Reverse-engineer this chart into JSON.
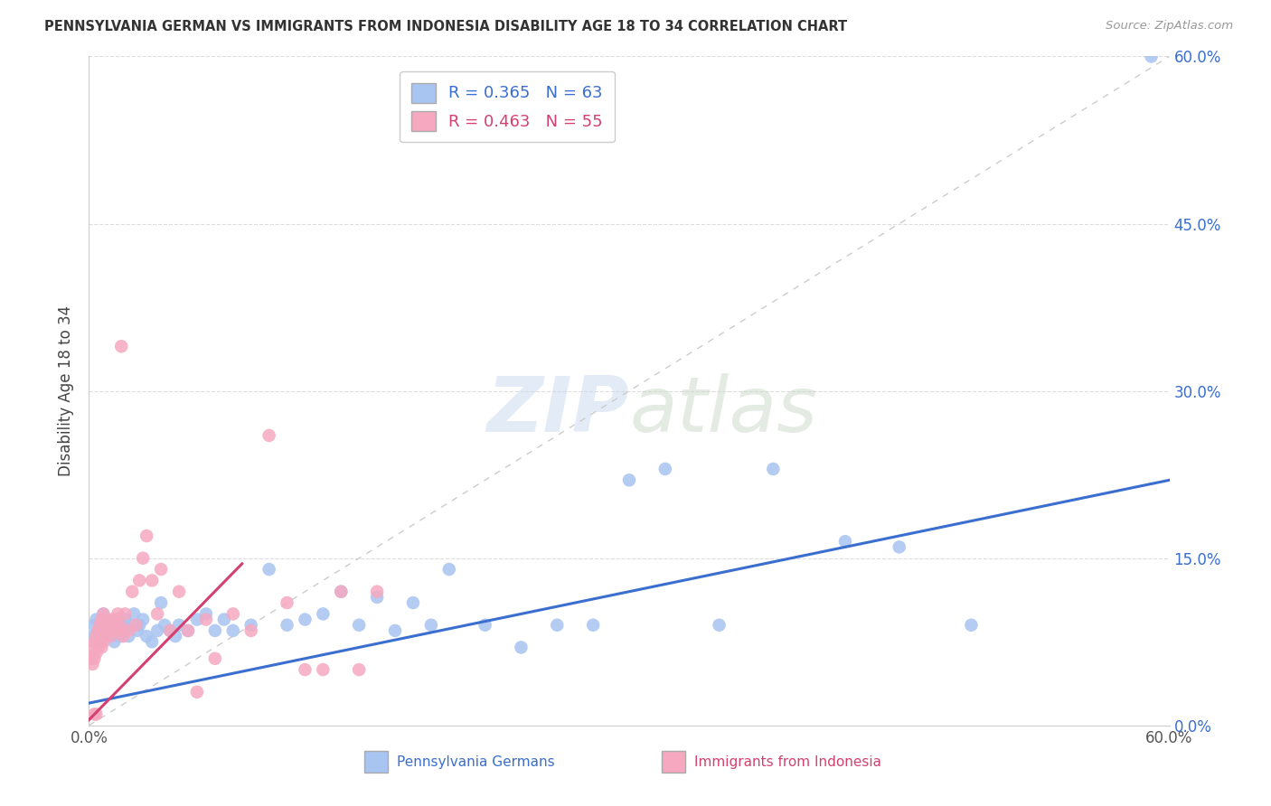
{
  "title": "PENNSYLVANIA GERMAN VS IMMIGRANTS FROM INDONESIA DISABILITY AGE 18 TO 34 CORRELATION CHART",
  "source": "Source: ZipAtlas.com",
  "ylabel": "Disability Age 18 to 34",
  "xlim": [
    0.0,
    0.6
  ],
  "ylim": [
    0.0,
    0.6
  ],
  "xticks": [
    0.0,
    0.6
  ],
  "xticklabels": [
    "0.0%",
    "60.0%"
  ],
  "yticks": [
    0.0,
    0.15,
    0.3,
    0.45,
    0.6
  ],
  "yticklabels": [
    "0.0%",
    "15.0%",
    "30.0%",
    "45.0%",
    "60.0%"
  ],
  "grid_yticks": [
    0.15,
    0.3,
    0.45,
    0.6
  ],
  "blue_R": 0.365,
  "blue_N": 63,
  "pink_R": 0.463,
  "pink_N": 55,
  "blue_color": "#a8c4f0",
  "pink_color": "#f5a8c0",
  "blue_line_color": "#3a6ecf",
  "pink_line_color": "#d44070",
  "legend_label_blue": "Pennsylvania Germans",
  "legend_label_pink": "Immigrants from Indonesia",
  "blue_x": [
    0.002,
    0.003,
    0.004,
    0.005,
    0.006,
    0.007,
    0.008,
    0.009,
    0.01,
    0.011,
    0.012,
    0.013,
    0.014,
    0.015,
    0.016,
    0.017,
    0.018,
    0.019,
    0.02,
    0.022,
    0.023,
    0.025,
    0.027,
    0.028,
    0.03,
    0.032,
    0.035,
    0.038,
    0.04,
    0.042,
    0.045,
    0.048,
    0.05,
    0.055,
    0.06,
    0.065,
    0.07,
    0.075,
    0.08,
    0.09,
    0.1,
    0.11,
    0.12,
    0.13,
    0.14,
    0.15,
    0.16,
    0.17,
    0.18,
    0.19,
    0.2,
    0.22,
    0.24,
    0.26,
    0.28,
    0.3,
    0.32,
    0.35,
    0.38,
    0.42,
    0.45,
    0.49,
    0.59
  ],
  "blue_y": [
    0.08,
    0.09,
    0.095,
    0.075,
    0.085,
    0.08,
    0.1,
    0.09,
    0.095,
    0.085,
    0.08,
    0.09,
    0.075,
    0.085,
    0.095,
    0.08,
    0.09,
    0.085,
    0.095,
    0.08,
    0.09,
    0.1,
    0.085,
    0.09,
    0.095,
    0.08,
    0.075,
    0.085,
    0.11,
    0.09,
    0.085,
    0.08,
    0.09,
    0.085,
    0.095,
    0.1,
    0.085,
    0.095,
    0.085,
    0.09,
    0.14,
    0.09,
    0.095,
    0.1,
    0.12,
    0.09,
    0.115,
    0.085,
    0.11,
    0.09,
    0.14,
    0.09,
    0.07,
    0.09,
    0.09,
    0.22,
    0.23,
    0.09,
    0.23,
    0.165,
    0.16,
    0.09,
    0.6
  ],
  "pink_x": [
    0.001,
    0.002,
    0.002,
    0.003,
    0.003,
    0.004,
    0.004,
    0.005,
    0.005,
    0.006,
    0.006,
    0.007,
    0.007,
    0.008,
    0.008,
    0.009,
    0.009,
    0.01,
    0.011,
    0.012,
    0.013,
    0.014,
    0.015,
    0.016,
    0.017,
    0.018,
    0.019,
    0.02,
    0.022,
    0.024,
    0.026,
    0.028,
    0.03,
    0.032,
    0.035,
    0.038,
    0.04,
    0.045,
    0.05,
    0.055,
    0.06,
    0.065,
    0.07,
    0.08,
    0.09,
    0.1,
    0.11,
    0.12,
    0.13,
    0.14,
    0.15,
    0.16,
    0.018,
    0.003,
    0.004
  ],
  "pink_y": [
    0.06,
    0.07,
    0.055,
    0.075,
    0.06,
    0.08,
    0.065,
    0.085,
    0.07,
    0.09,
    0.075,
    0.095,
    0.07,
    0.1,
    0.075,
    0.09,
    0.08,
    0.095,
    0.085,
    0.08,
    0.095,
    0.085,
    0.095,
    0.1,
    0.09,
    0.085,
    0.08,
    0.1,
    0.085,
    0.12,
    0.09,
    0.13,
    0.15,
    0.17,
    0.13,
    0.1,
    0.14,
    0.085,
    0.12,
    0.085,
    0.03,
    0.095,
    0.06,
    0.1,
    0.085,
    0.26,
    0.11,
    0.05,
    0.05,
    0.12,
    0.05,
    0.12,
    0.34,
    0.01,
    0.01
  ]
}
